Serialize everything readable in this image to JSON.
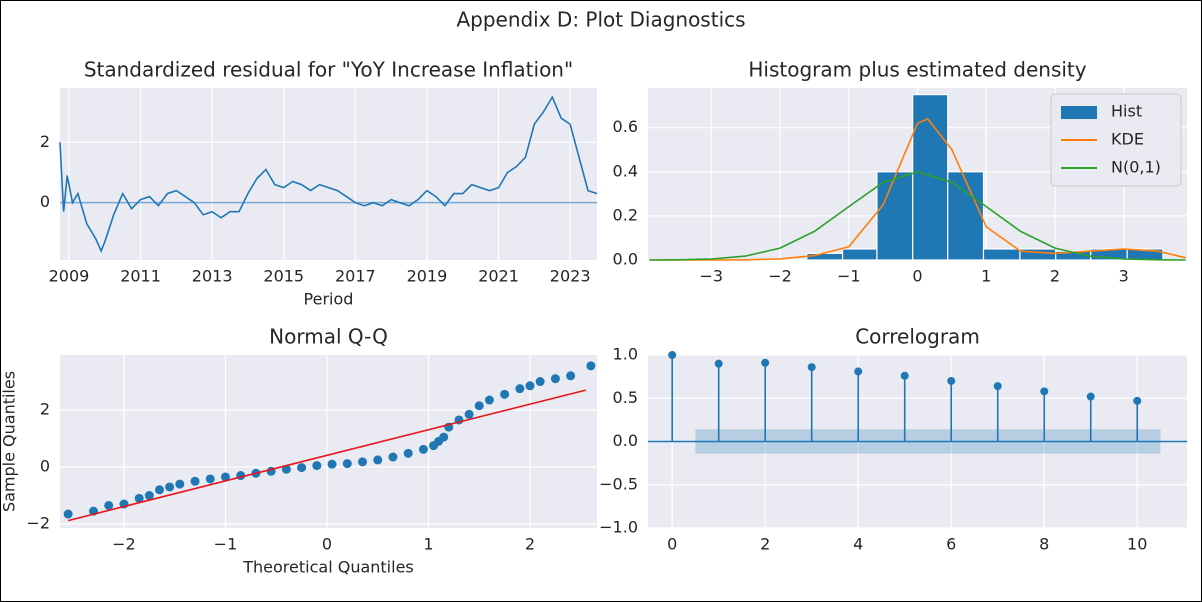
{
  "figure": {
    "title": "Appendix D: Plot Diagnostics"
  },
  "chart_data": [
    {
      "type": "line",
      "title": "Standardized residual for \"YoY Increase Inflation\"",
      "xlabel": "Period",
      "x": [
        2008.75,
        2008.85,
        2008.95,
        2009.1,
        2009.25,
        2009.5,
        2009.75,
        2009.9,
        2010,
        2010.25,
        2010.5,
        2010.75,
        2011,
        2011.25,
        2011.5,
        2011.75,
        2012,
        2012.25,
        2012.5,
        2012.75,
        2013,
        2013.25,
        2013.5,
        2013.75,
        2014,
        2014.25,
        2014.5,
        2014.75,
        2015,
        2015.25,
        2015.5,
        2015.75,
        2016,
        2016.25,
        2016.5,
        2016.75,
        2017,
        2017.25,
        2017.5,
        2017.75,
        2018,
        2018.25,
        2018.5,
        2018.75,
        2019,
        2019.25,
        2019.5,
        2019.75,
        2020,
        2020.25,
        2020.5,
        2020.75,
        2021,
        2021.25,
        2021.5,
        2021.75,
        2022,
        2022.25,
        2022.5,
        2022.75,
        2023,
        2023.25,
        2023.5,
        2023.75
      ],
      "values": [
        2.0,
        -0.3,
        0.9,
        0.0,
        0.3,
        -0.7,
        -1.2,
        -1.6,
        -1.3,
        -0.4,
        0.3,
        -0.2,
        0.1,
        0.2,
        -0.1,
        0.3,
        0.4,
        0.2,
        0.0,
        -0.4,
        -0.3,
        -0.5,
        -0.3,
        -0.3,
        0.3,
        0.8,
        1.1,
        0.6,
        0.5,
        0.7,
        0.6,
        0.4,
        0.6,
        0.5,
        0.4,
        0.2,
        0.0,
        -0.1,
        0.0,
        -0.1,
        0.1,
        0.0,
        -0.1,
        0.1,
        0.4,
        0.2,
        -0.1,
        0.3,
        0.3,
        0.6,
        0.5,
        0.4,
        0.5,
        1.0,
        1.2,
        1.5,
        2.6,
        3.0,
        3.5,
        2.8,
        2.6,
        1.5,
        0.4,
        0.3
      ],
      "color": "#1f77b4",
      "hline": 0,
      "hline_color": "#7aa8d2",
      "xlim": [
        2008.75,
        2023.75
      ],
      "ylim": [
        -1.9,
        3.8
      ],
      "xticks": [
        2009,
        2011,
        2013,
        2015,
        2017,
        2019,
        2021,
        2023
      ],
      "yticks": [
        0,
        2
      ],
      "grid": true
    },
    {
      "type": "histogram",
      "title": "Histogram plus estimated density",
      "hist_name": "Hist",
      "bins": [
        -1.61,
        -1.09,
        -0.59,
        -0.07,
        0.44,
        0.96,
        1.49,
        2.01,
        2.52,
        3.05,
        3.57
      ],
      "values": [
        0.03,
        0.05,
        0.4,
        0.75,
        0.4,
        0.05,
        0.05,
        0.04,
        0.05,
        0.05
      ],
      "color": "#1f77b4",
      "series": [
        {
          "name": "KDE",
          "color": "#ff7f0e",
          "x": [
            -3.9,
            -3.5,
            -3,
            -2.5,
            -2,
            -1.5,
            -1,
            -0.5,
            0,
            0.15,
            0.5,
            1,
            1.5,
            2,
            2.5,
            3,
            3.5,
            3.9
          ],
          "values": [
            0,
            0,
            0,
            0.001,
            0.005,
            0.02,
            0.06,
            0.25,
            0.62,
            0.64,
            0.5,
            0.15,
            0.04,
            0.03,
            0.04,
            0.05,
            0.04,
            0.01
          ]
        },
        {
          "name": "N(0,1)",
          "color": "#2ca02c",
          "x": [
            -3.9,
            -3.5,
            -3,
            -2.5,
            -2,
            -1.5,
            -1,
            -0.5,
            0,
            0.5,
            1,
            1.5,
            2,
            2.5,
            3,
            3.5,
            3.9
          ],
          "values": [
            0.0002,
            0.0009,
            0.0044,
            0.0175,
            0.054,
            0.1295,
            0.242,
            0.352,
            0.399,
            0.352,
            0.242,
            0.1295,
            0.054,
            0.0175,
            0.0044,
            0.0009,
            0.0002
          ]
        }
      ],
      "legend": "upper right",
      "xlim": [
        -3.92,
        3.92
      ],
      "ylim": [
        0,
        0.78
      ],
      "xticks": [
        {
          "value": -3,
          "label": "−3"
        },
        {
          "value": -2,
          "label": "−2"
        },
        {
          "value": -1,
          "label": "−1"
        },
        0,
        1,
        2,
        3
      ],
      "yticks": [
        {
          "value": 0,
          "label": "0.0"
        },
        0.2,
        0.4,
        0.6
      ],
      "grid": true
    },
    {
      "type": "scatter",
      "title": "Normal Q-Q",
      "xlabel": "Theoretical Quantiles",
      "ylabel": "Sample Quantiles",
      "x": [
        -2.55,
        -2.3,
        -2.15,
        -2.0,
        -1.85,
        -1.75,
        -1.65,
        -1.55,
        -1.45,
        -1.3,
        -1.15,
        -1.0,
        -0.85,
        -0.7,
        -0.55,
        -0.4,
        -0.25,
        -0.1,
        0.05,
        0.2,
        0.35,
        0.5,
        0.65,
        0.8,
        0.95,
        1.05,
        1.1,
        1.15,
        1.2,
        1.3,
        1.4,
        1.5,
        1.6,
        1.75,
        1.9,
        2.0,
        2.1,
        2.25,
        2.4,
        2.6
      ],
      "values": [
        -1.65,
        -1.55,
        -1.35,
        -1.3,
        -1.1,
        -1.0,
        -0.8,
        -0.7,
        -0.6,
        -0.5,
        -0.42,
        -0.35,
        -0.3,
        -0.22,
        -0.15,
        -0.08,
        -0.02,
        0.05,
        0.1,
        0.12,
        0.18,
        0.25,
        0.35,
        0.48,
        0.62,
        0.75,
        0.9,
        1.05,
        1.4,
        1.65,
        1.85,
        2.15,
        2.35,
        2.55,
        2.75,
        2.85,
        3.0,
        3.1,
        3.2,
        3.55
      ],
      "color": "#1f77b4",
      "fit_line": {
        "color": "#e8151b",
        "x": [
          -2.55,
          2.55
        ],
        "values": [
          -1.88,
          2.7
        ]
      },
      "xlim": [
        -2.63,
        2.66
      ],
      "ylim": [
        -2.14,
        3.93
      ],
      "xticks": [
        {
          "value": -2,
          "label": "−2"
        },
        {
          "value": -1,
          "label": "−1"
        },
        0,
        1,
        2
      ],
      "yticks": [
        {
          "value": -2,
          "label": "−2"
        },
        0,
        2
      ],
      "grid": true
    },
    {
      "type": "stem",
      "title": "Correlogram",
      "x": [
        0,
        1,
        2,
        3,
        4,
        5,
        6,
        7,
        8,
        9,
        10
      ],
      "values": [
        1.0,
        0.9,
        0.91,
        0.86,
        0.81,
        0.76,
        0.7,
        0.64,
        0.58,
        0.52,
        0.47
      ],
      "color": "#1f77b4",
      "conf_x": [
        0.5,
        10.5
      ],
      "conf_band": [
        -0.14,
        0.14
      ],
      "band_color": "#1f77b4",
      "xlim": [
        -0.52,
        11.07
      ],
      "ylim": [
        -1.0,
        1.0
      ],
      "xticks": [
        0,
        2,
        4,
        6,
        8,
        10
      ],
      "yticks": [
        {
          "value": -1,
          "label": "−1.0"
        },
        {
          "value": -0.5,
          "label": "−0.5"
        },
        {
          "value": 0,
          "label": "0.0"
        },
        {
          "value": 0.5,
          "label": "0.5"
        },
        {
          "value": 1,
          "label": "1.0"
        }
      ],
      "grid": true
    }
  ]
}
